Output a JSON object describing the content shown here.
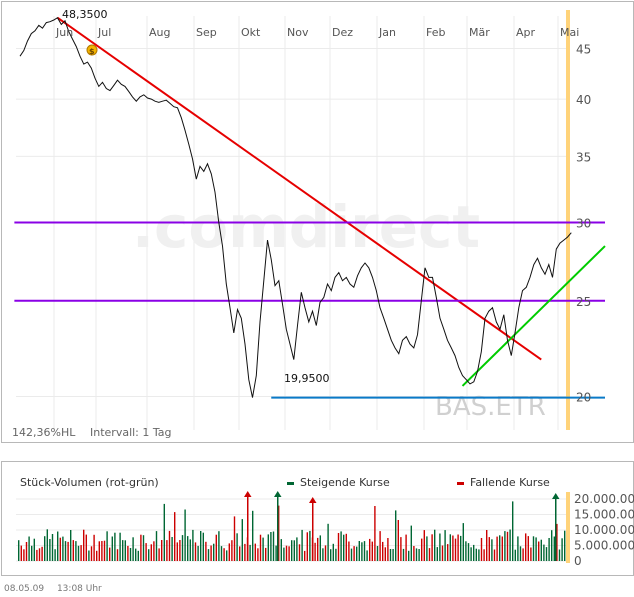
{
  "chart_data": [
    {
      "type": "line",
      "symbol": "BAS.ETR",
      "watermark": ".comdirect",
      "x_months": [
        "Jun",
        "Jul",
        "Aug",
        "Sep",
        "Okt",
        "Nov",
        "Dez",
        "Jan",
        "Feb",
        "Mär",
        "Apr",
        "Mai"
      ],
      "ylim": [
        18.5,
        49
      ],
      "log_scale": true,
      "y_ticks": [
        20,
        25,
        30,
        35,
        40,
        45
      ],
      "high_label": "48,3500",
      "low_label": "19,9500",
      "info_text": "142,36%HL",
      "interval_text": "Intervall: 1 Tag",
      "price_series": [
        [
          0,
          44.2
        ],
        [
          2,
          44.8
        ],
        [
          4,
          45.8
        ],
        [
          6,
          46.6
        ],
        [
          8,
          46.9
        ],
        [
          10,
          47.5
        ],
        [
          12,
          47.2
        ],
        [
          14,
          47.8
        ],
        [
          16,
          47.9
        ],
        [
          18,
          48.1
        ],
        [
          20,
          48.35
        ],
        [
          22,
          47.6
        ],
        [
          24,
          48.0
        ],
        [
          26,
          46.8
        ],
        [
          28,
          46.0
        ],
        [
          30,
          45.2
        ],
        [
          32,
          44.2
        ],
        [
          34,
          43.4
        ],
        [
          36,
          43.6
        ],
        [
          38,
          43.0
        ],
        [
          40,
          42.0
        ],
        [
          42,
          41.2
        ],
        [
          44,
          41.6
        ],
        [
          46,
          41.0
        ],
        [
          48,
          40.8
        ],
        [
          50,
          41.3
        ],
        [
          52,
          41.8
        ],
        [
          54,
          41.4
        ],
        [
          56,
          41.2
        ],
        [
          58,
          40.7
        ],
        [
          60,
          40.2
        ],
        [
          62,
          39.8
        ],
        [
          64,
          40.2
        ],
        [
          66,
          40.4
        ],
        [
          68,
          40.1
        ],
        [
          70,
          40.0
        ],
        [
          72,
          39.8
        ],
        [
          74,
          39.7
        ],
        [
          76,
          39.8
        ],
        [
          78,
          39.9
        ],
        [
          80,
          39.6
        ],
        [
          82,
          39.3
        ],
        [
          84,
          39.2
        ],
        [
          86,
          38.3
        ],
        [
          88,
          37.2
        ],
        [
          90,
          36.0
        ],
        [
          92,
          34.8
        ],
        [
          94,
          33.2
        ],
        [
          96,
          34.2
        ],
        [
          98,
          33.8
        ],
        [
          100,
          34.4
        ],
        [
          102,
          33.6
        ],
        [
          104,
          32.2
        ],
        [
          106,
          30.0
        ],
        [
          108,
          28.4
        ],
        [
          110,
          26.0
        ],
        [
          112,
          24.6
        ],
        [
          114,
          23.2
        ],
        [
          116,
          24.5
        ],
        [
          118,
          24.0
        ],
        [
          120,
          22.6
        ],
        [
          122,
          20.8
        ],
        [
          124,
          19.95
        ],
        [
          126,
          21.0
        ],
        [
          128,
          23.8
        ],
        [
          130,
          26.2
        ],
        [
          132,
          28.8
        ],
        [
          134,
          27.5
        ],
        [
          136,
          25.9
        ],
        [
          138,
          26.2
        ],
        [
          140,
          24.8
        ],
        [
          142,
          23.4
        ],
        [
          144,
          22.6
        ],
        [
          146,
          21.8
        ],
        [
          148,
          23.6
        ],
        [
          150,
          25.5
        ],
        [
          152,
          24.6
        ],
        [
          154,
          23.8
        ],
        [
          156,
          24.4
        ],
        [
          158,
          23.6
        ],
        [
          160,
          24.9
        ],
        [
          162,
          25.2
        ],
        [
          164,
          26.0
        ],
        [
          166,
          25.6
        ],
        [
          168,
          26.4
        ],
        [
          170,
          26.7
        ],
        [
          172,
          26.2
        ],
        [
          174,
          26.4
        ],
        [
          176,
          26.0
        ],
        [
          178,
          25.8
        ],
        [
          180,
          26.5
        ],
        [
          182,
          27.0
        ],
        [
          184,
          27.3
        ],
        [
          186,
          27.0
        ],
        [
          188,
          26.4
        ],
        [
          190,
          25.6
        ],
        [
          192,
          24.6
        ],
        [
          194,
          24.0
        ],
        [
          196,
          23.4
        ],
        [
          198,
          22.8
        ],
        [
          200,
          22.4
        ],
        [
          202,
          22.1
        ],
        [
          204,
          22.8
        ],
        [
          206,
          23.0
        ],
        [
          208,
          22.6
        ],
        [
          210,
          22.4
        ],
        [
          212,
          23.1
        ],
        [
          214,
          25.0
        ],
        [
          216,
          27.0
        ],
        [
          218,
          26.4
        ],
        [
          220,
          26.4
        ],
        [
          222,
          25.2
        ],
        [
          224,
          24.0
        ],
        [
          226,
          23.4
        ],
        [
          228,
          22.8
        ],
        [
          230,
          22.4
        ],
        [
          232,
          22.0
        ],
        [
          234,
          21.4
        ],
        [
          236,
          21.0
        ],
        [
          238,
          20.8
        ],
        [
          240,
          20.6
        ],
        [
          242,
          20.7
        ],
        [
          244,
          21.2
        ],
        [
          246,
          22.2
        ],
        [
          248,
          24.0
        ],
        [
          250,
          24.4
        ],
        [
          252,
          24.6
        ],
        [
          254,
          23.8
        ],
        [
          256,
          23.4
        ],
        [
          258,
          24.2
        ],
        [
          260,
          22.8
        ],
        [
          262,
          22.0
        ],
        [
          264,
          23.2
        ],
        [
          266,
          24.6
        ],
        [
          268,
          25.6
        ],
        [
          270,
          25.8
        ],
        [
          272,
          26.4
        ],
        [
          274,
          27.2
        ],
        [
          276,
          27.6
        ],
        [
          278,
          27.0
        ],
        [
          280,
          26.6
        ],
        [
          282,
          27.2
        ],
        [
          284,
          26.4
        ],
        [
          286,
          28.2
        ],
        [
          288,
          28.6
        ],
        [
          290,
          28.8
        ],
        [
          292,
          29.0
        ],
        [
          294,
          29.3
        ]
      ],
      "trendlines": [
        {
          "color": "#e60000",
          "from": [
            20,
            48.35
          ],
          "to": [
            278,
            21.8
          ]
        },
        {
          "color": "#8a00e6",
          "from": [
            -3,
            30.0
          ],
          "to": [
            312,
            30.0
          ]
        },
        {
          "color": "#8a00e6",
          "from": [
            -3,
            25.0
          ],
          "to": [
            312,
            25.0
          ]
        },
        {
          "color": "#0a7ac8",
          "from": [
            134,
            19.95
          ],
          "to": [
            312,
            19.95
          ]
        },
        {
          "color": "#00cc00",
          "from": [
            236,
            20.5
          ],
          "to": [
            312,
            28.4
          ]
        }
      ]
    },
    {
      "type": "bar",
      "title": "Stück-Volumen (rot-grün)",
      "legend": [
        {
          "name": "Steigende Kurse",
          "color": "#006633"
        },
        {
          "name": "Fallende Kurse",
          "color": "#cc0000"
        }
      ],
      "y_ticks": [
        "20.000.000",
        "15.000.000",
        "10.000.000",
        "5.000.000",
        "0"
      ],
      "ylim": [
        0,
        22000000
      ]
    }
  ],
  "footer": {
    "date": "08.05.09",
    "time": "13:08 Uhr"
  }
}
